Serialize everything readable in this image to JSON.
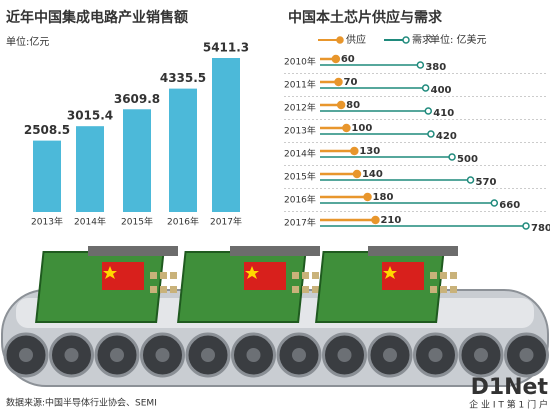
{
  "chart_data": [
    {
      "type": "bar",
      "title": "近年中国集成电路产业销售额",
      "subtitle": "单位:亿元",
      "categories": [
        "2013年",
        "2014年",
        "2015年",
        "2016年",
        "2017年"
      ],
      "values": [
        2508.5,
        3015.4,
        3609.8,
        4335.5,
        5411.3
      ],
      "color": "#4cb9d9"
    },
    {
      "type": "lollipop",
      "title": "中国本土芯片供应与需求",
      "subtitle": "单位: 亿美元",
      "categories": [
        "2010年",
        "2011年",
        "2012年",
        "2013年",
        "2014年",
        "2015年",
        "2016年",
        "2017年"
      ],
      "series": [
        {
          "name": "供应",
          "color": "#e8962c",
          "values": [
            60,
            70,
            80,
            100,
            130,
            140,
            180,
            210
          ]
        },
        {
          "name": "需求",
          "color": "#1f8a7c",
          "values": [
            380,
            400,
            410,
            420,
            500,
            570,
            660,
            780
          ]
        }
      ]
    }
  ],
  "footer": {
    "source": "数据来源:中国半导体行业协会、SEMI",
    "logo": "D1Net",
    "tagline": "企 业 I T 第 1 门 户"
  }
}
